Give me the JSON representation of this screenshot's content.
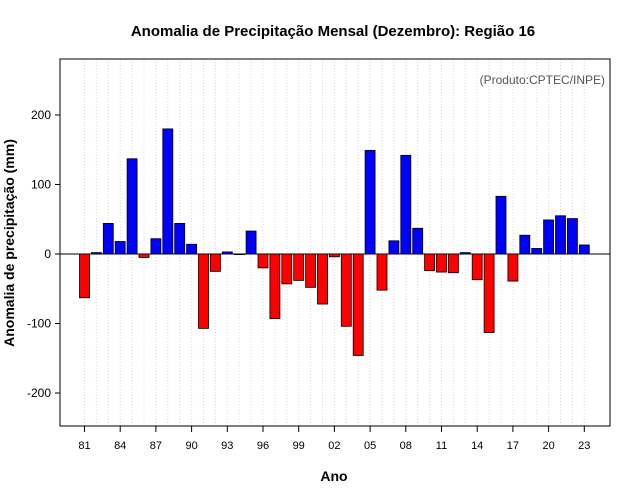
{
  "chart_data": {
    "type": "bar",
    "title": "Anomalia de Precipitação Mensal (Dezembro): Região 16",
    "xlabel": "Ano",
    "ylabel": "Anomalia de precipitação (mm)",
    "annotation": "(Produto:CPTEC/INPE)",
    "ylim": [
      -250,
      280
    ],
    "yticks": [
      -200,
      -100,
      0,
      100,
      200
    ],
    "ytick_labels": [
      "-200",
      "-100",
      "0",
      "100",
      "200"
    ],
    "xtick_labels": [
      "81",
      "84",
      "87",
      "90",
      "93",
      "96",
      "99",
      "02",
      "05",
      "08",
      "11",
      "14",
      "17",
      "20",
      "23"
    ],
    "xtick_years": [
      1981,
      1984,
      1987,
      1990,
      1993,
      1996,
      1999,
      2002,
      2005,
      2008,
      2011,
      2014,
      2017,
      2020,
      2023
    ],
    "positive_color": "#0000ff",
    "negative_color": "#ff0000",
    "grid": "vertical dotted",
    "categories": [
      1981,
      1982,
      1983,
      1984,
      1985,
      1986,
      1987,
      1988,
      1989,
      1990,
      1991,
      1992,
      1993,
      1994,
      1995,
      1996,
      1997,
      1998,
      1999,
      2000,
      2001,
      2002,
      2003,
      2004,
      2005,
      2006,
      2007,
      2008,
      2009,
      2010,
      2011,
      2012,
      2013,
      2014,
      2015,
      2016,
      2017,
      2018,
      2019,
      2020,
      2021,
      2022,
      2023
    ],
    "values": [
      -63,
      2,
      44,
      18,
      137,
      -5,
      22,
      180,
      44,
      14,
      -107,
      -25,
      3,
      0,
      33,
      -20,
      -93,
      -43,
      -38,
      -48,
      -72,
      -4,
      -104,
      -146,
      149,
      -52,
      19,
      142,
      37,
      -24,
      -26,
      -27,
      2,
      -37,
      -113,
      83,
      -39,
      27,
      8,
      49,
      55,
      51,
      13
    ]
  }
}
